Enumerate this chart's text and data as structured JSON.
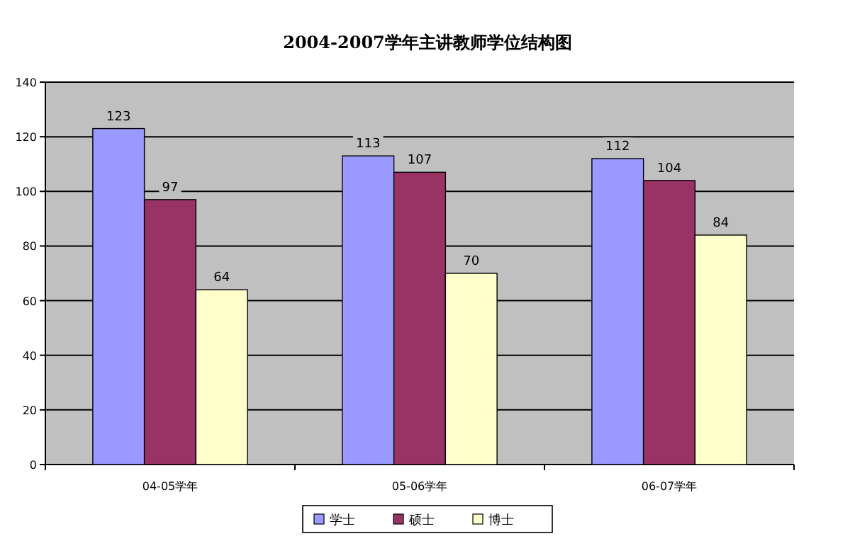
{
  "chart_data": {
    "type": "bar",
    "title": "2004-2007学年主讲教师学位结构图",
    "categories": [
      "04-05学年",
      "05-06学年",
      "06-07学年"
    ],
    "series": [
      {
        "name": "学士",
        "color": "#9999ff",
        "values": [
          123,
          113,
          112
        ]
      },
      {
        "name": "硕士",
        "color": "#993366",
        "values": [
          97,
          107,
          104
        ]
      },
      {
        "name": "博士",
        "color": "#ffffcc",
        "values": [
          64,
          70,
          84
        ]
      }
    ],
    "ylim": [
      0,
      140
    ],
    "yticks": [
      0,
      20,
      40,
      60,
      80,
      100,
      120,
      140
    ],
    "grid": "y",
    "legend": "bottom",
    "data_labels": true
  }
}
